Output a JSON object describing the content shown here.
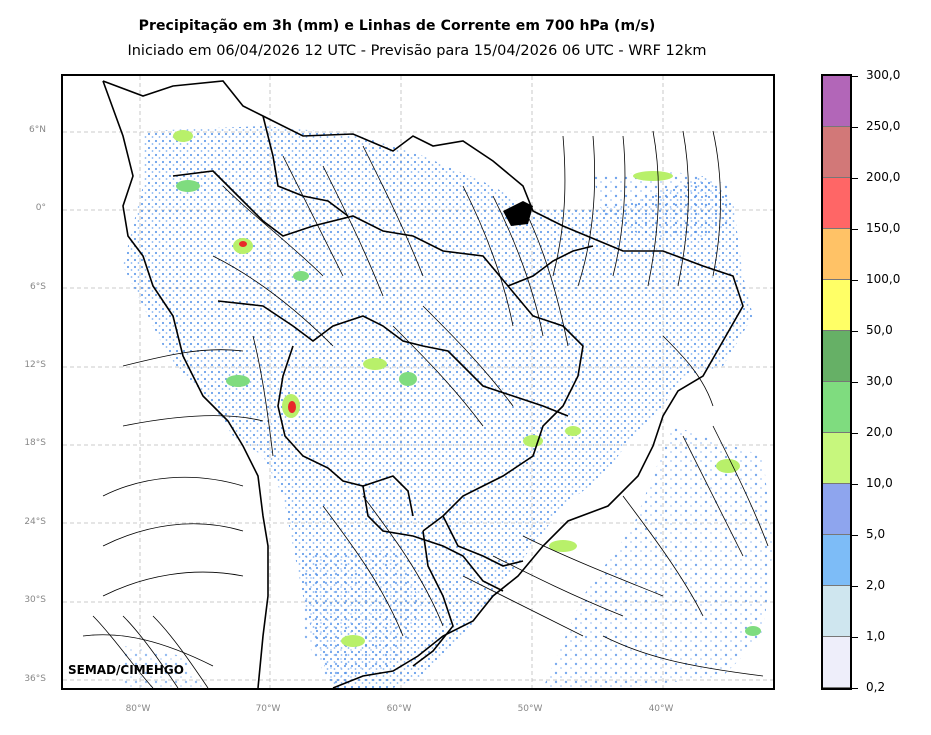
{
  "header": {
    "title": "Precipitação em 3h (mm) e Linhas de Corrente em 700 hPa (m/s)",
    "subtitle": "Iniciado em 06/04/2026 12 UTC - Previsão para 15/04/2026 06 UTC - WRF 12km"
  },
  "map": {
    "lat_labels": [
      "6°N",
      "0°",
      "6°S",
      "12°S",
      "18°S",
      "24°S",
      "30°S",
      "36°S"
    ],
    "lon_labels": [
      "80°W",
      "70°W",
      "60°W",
      "50°W",
      "40°W"
    ],
    "credit": "SEMAD/CIMEHGO",
    "colors": {
      "land_outline": "#000000",
      "gridline": "#bbbbbb",
      "rain_light": "#4f8fe8",
      "rain_moderate": "#b8f06a",
      "rain_heavy": "#e8282a"
    }
  },
  "colorbar": {
    "unit": "mm",
    "labels": [
      "0,2",
      "1,0",
      "2,0",
      "5,0",
      "10,0",
      "20,0",
      "30,0",
      "50,0",
      "100,0",
      "150,0",
      "200,0",
      "250,0",
      "300,0"
    ],
    "colors": [
      "#eeeefa",
      "#cfe6ef",
      "#7dbcf7",
      "#8ea5ee",
      "#c7f77d",
      "#7fdc7f",
      "#66b066",
      "#ffff66",
      "#ffc266",
      "#ff6666",
      "#d27878",
      "#b266b8"
    ]
  }
}
